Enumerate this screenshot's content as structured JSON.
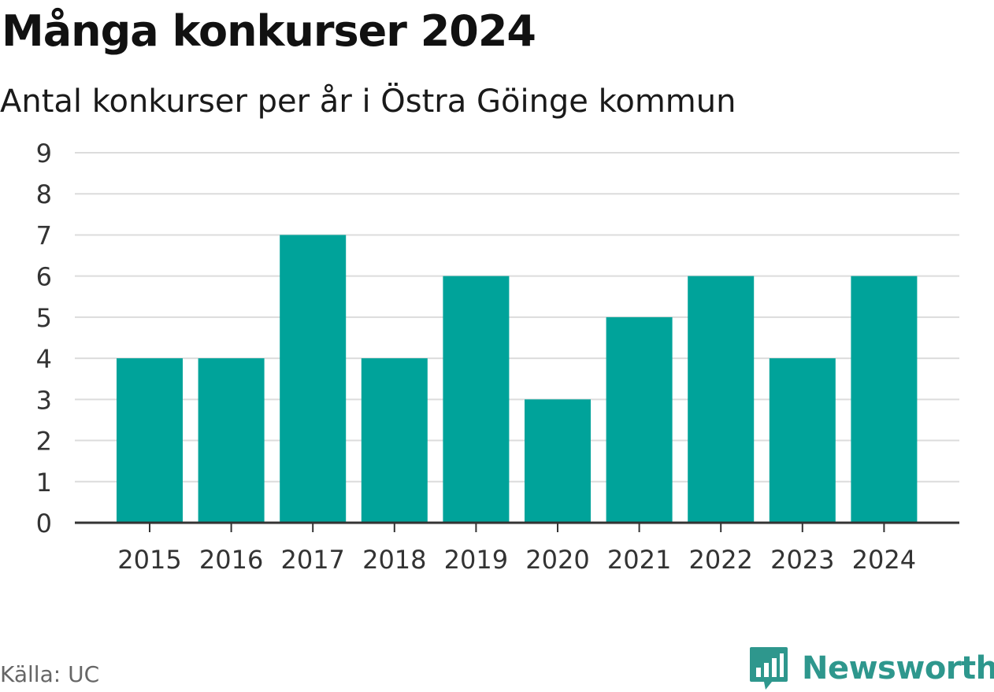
{
  "chart_data": {
    "type": "bar",
    "title": "Många konkurser 2024",
    "subtitle": "Antal konkurser per år i Östra Göinge kommun",
    "categories": [
      "2015",
      "2016",
      "2017",
      "2018",
      "2019",
      "2020",
      "2021",
      "2022",
      "2023",
      "2024"
    ],
    "values": [
      4,
      4,
      7,
      4,
      6,
      3,
      5,
      6,
      4,
      6
    ],
    "xlabel": "",
    "ylabel": "",
    "ylim": [
      0,
      9
    ],
    "yticks": [
      0,
      1,
      2,
      3,
      4,
      5,
      6,
      7,
      8,
      9
    ],
    "grid": true,
    "bar_color": "#00a39a"
  },
  "source": "Källa: UC",
  "brand": {
    "name": "Newsworthy",
    "color": "#2e978d",
    "icon": "newsworthy-logo-icon"
  }
}
